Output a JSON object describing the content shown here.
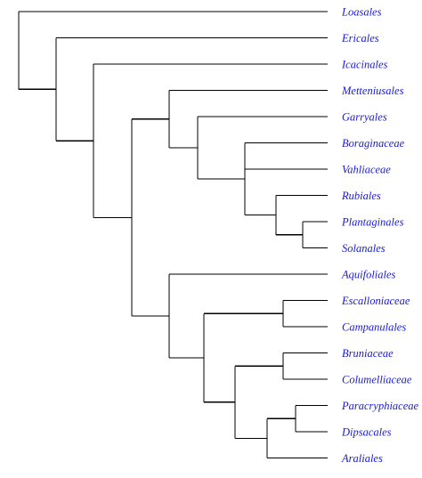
{
  "tree": {
    "label_color": "#1a1ad8",
    "line_color": "#000000",
    "taxa": [
      "Loasales",
      "Ericales",
      "Icacinales",
      "Metteniusales",
      "Garryales",
      "Boraginaceae",
      "Vahliaceae",
      "Rubiales",
      "Plantaginales",
      "Solanales",
      "Aquifoliales",
      "Escalloniaceae",
      "Campanulales",
      "Bruniaceae",
      "Columelliaceae",
      "Paracryphiaceae",
      "Dipsacales",
      "Araliales"
    ]
  }
}
